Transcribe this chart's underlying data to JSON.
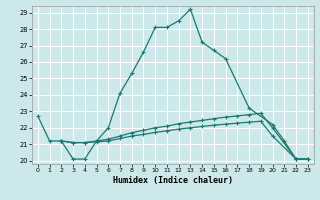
{
  "xlabel": "Humidex (Indice chaleur)",
  "bg_color": "#cce8ea",
  "grid_color": "#ffffff",
  "line_color": "#1a7a6e",
  "xlim": [
    -0.5,
    23.5
  ],
  "ylim": [
    19.8,
    29.4
  ],
  "xticks": [
    0,
    1,
    2,
    3,
    4,
    5,
    6,
    7,
    8,
    9,
    10,
    11,
    12,
    13,
    14,
    15,
    16,
    17,
    18,
    19,
    20,
    21,
    22,
    23
  ],
  "yticks": [
    20,
    21,
    22,
    23,
    24,
    25,
    26,
    27,
    28,
    29
  ],
  "line1_x": [
    0,
    1,
    2,
    3,
    4,
    5,
    6,
    7,
    8,
    9,
    10,
    11,
    12,
    13,
    14,
    15,
    16,
    18,
    20,
    21,
    22,
    23
  ],
  "line1_y": [
    22.7,
    21.2,
    21.2,
    20.1,
    20.1,
    21.2,
    22.0,
    24.1,
    25.3,
    26.6,
    28.1,
    28.1,
    28.5,
    29.2,
    27.2,
    26.7,
    26.2,
    23.2,
    22.2,
    21.2,
    20.1,
    20.1
  ],
  "line2_x": [
    2,
    3,
    4,
    5,
    6,
    7,
    8,
    9,
    10,
    11,
    12,
    13,
    14,
    15,
    16,
    17,
    18,
    19,
    20,
    22,
    23
  ],
  "line2_y": [
    21.2,
    21.1,
    21.1,
    21.2,
    21.3,
    21.5,
    21.7,
    21.85,
    22.0,
    22.1,
    22.25,
    22.35,
    22.45,
    22.55,
    22.65,
    22.72,
    22.8,
    22.88,
    22.0,
    20.1,
    20.1
  ],
  "line3_x": [
    2,
    3,
    4,
    5,
    6,
    7,
    8,
    9,
    10,
    11,
    12,
    13,
    14,
    15,
    16,
    17,
    18,
    19,
    20,
    22,
    23
  ],
  "line3_y": [
    21.2,
    21.1,
    21.1,
    21.15,
    21.2,
    21.35,
    21.5,
    21.6,
    21.72,
    21.82,
    21.92,
    22.0,
    22.08,
    22.16,
    22.22,
    22.28,
    22.34,
    22.4,
    21.5,
    20.1,
    20.1
  ]
}
